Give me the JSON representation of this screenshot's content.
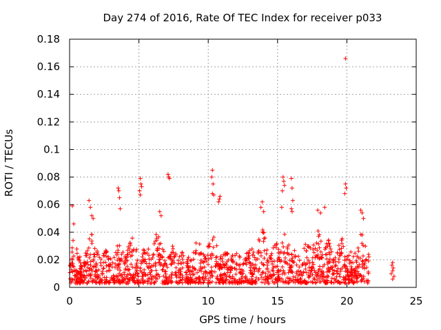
{
  "chart_data": {
    "type": "scatter",
    "title": "Day 274 of 2016, Rate Of TEC Index for receiver p033",
    "xlabel": "GPS time / hours",
    "ylabel": "ROTI / TECUs",
    "xlim": [
      0,
      25
    ],
    "ylim": [
      0,
      0.18
    ],
    "x_ticks": [
      0,
      5,
      10,
      15,
      20,
      25
    ],
    "x_tick_labels": [
      "0",
      "5",
      "10",
      "15",
      "20",
      "25"
    ],
    "y_ticks": [
      0,
      0.02,
      0.04,
      0.06,
      0.08,
      0.1,
      0.12,
      0.14,
      0.16,
      0.18
    ],
    "y_tick_labels": [
      "0",
      "0.02",
      "0.04",
      "0.06",
      "0.08",
      "0.1",
      "0.12",
      "0.14",
      "0.16",
      "0.18"
    ],
    "grid": true,
    "marker": "+",
    "color": "#ff0000",
    "series": [
      {
        "name": "ROTI",
        "description": "dense scatter 0–21.6 h (mostly 0.005–0.04 TECU) plus cluster at ~23.3 h",
        "points": [
          [
            0.2,
            0.059
          ],
          [
            0.3,
            0.046
          ],
          [
            0.25,
            0.034
          ],
          [
            1.4,
            0.063
          ],
          [
            1.5,
            0.058
          ],
          [
            1.6,
            0.052
          ],
          [
            1.7,
            0.05
          ],
          [
            3.5,
            0.072
          ],
          [
            3.55,
            0.07
          ],
          [
            3.6,
            0.065
          ],
          [
            3.65,
            0.057
          ],
          [
            5.1,
            0.079
          ],
          [
            5.15,
            0.075
          ],
          [
            5.2,
            0.073
          ],
          [
            5.05,
            0.07
          ],
          [
            5.1,
            0.067
          ],
          [
            6.5,
            0.055
          ],
          [
            6.6,
            0.052
          ],
          [
            7.1,
            0.082
          ],
          [
            7.15,
            0.08
          ],
          [
            7.2,
            0.079
          ],
          [
            10.3,
            0.085
          ],
          [
            10.25,
            0.08
          ],
          [
            10.35,
            0.075
          ],
          [
            10.3,
            0.068
          ],
          [
            10.4,
            0.067
          ],
          [
            10.8,
            0.064
          ],
          [
            10.75,
            0.062
          ],
          [
            10.85,
            0.066
          ],
          [
            13.9,
            0.062
          ],
          [
            13.8,
            0.058
          ],
          [
            14.0,
            0.055
          ],
          [
            15.4,
            0.08
          ],
          [
            15.45,
            0.077
          ],
          [
            15.5,
            0.074
          ],
          [
            15.35,
            0.07
          ],
          [
            15.3,
            0.058
          ],
          [
            16.0,
            0.079
          ],
          [
            16.05,
            0.072
          ],
          [
            16.1,
            0.063
          ],
          [
            16.0,
            0.057
          ],
          [
            16.05,
            0.055
          ],
          [
            17.9,
            0.056
          ],
          [
            18.1,
            0.054
          ],
          [
            18.4,
            0.058
          ],
          [
            19.9,
            0.166
          ],
          [
            19.9,
            0.075
          ],
          [
            19.95,
            0.072
          ],
          [
            19.85,
            0.068
          ],
          [
            21.0,
            0.056
          ],
          [
            21.1,
            0.054
          ],
          [
            21.2,
            0.05
          ],
          [
            23.3,
            0.018
          ],
          [
            23.25,
            0.016
          ],
          [
            23.35,
            0.014
          ],
          [
            23.3,
            0.012
          ],
          [
            23.2,
            0.01
          ],
          [
            23.4,
            0.008
          ],
          [
            23.3,
            0.006
          ]
        ],
        "dense_band": {
          "x_range": [
            0,
            21.6
          ],
          "baseline_min": 0.003,
          "typical_max": 0.04
        }
      }
    ]
  }
}
